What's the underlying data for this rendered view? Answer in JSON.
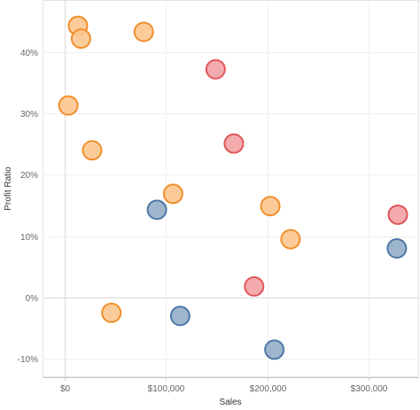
{
  "chart_data": {
    "type": "scatter",
    "title": "",
    "xlabel": "Sales",
    "ylabel": "Profit Ratio",
    "xlim": [
      -22000,
      350000
    ],
    "ylim": [
      -0.13,
      0.485
    ],
    "x_ticks": [
      {
        "value": 0,
        "label": "$0"
      },
      {
        "value": 100000,
        "label": "$100,000"
      },
      {
        "value": 200000,
        "label": "$200,000"
      },
      {
        "value": 300000,
        "label": "$300,000"
      }
    ],
    "y_ticks": [
      {
        "value": -0.1,
        "label": "-10%"
      },
      {
        "value": 0,
        "label": "0%"
      },
      {
        "value": 0.1,
        "label": "10%"
      },
      {
        "value": 0.2,
        "label": "20%"
      },
      {
        "value": 0.3,
        "label": "30%"
      },
      {
        "value": 0.4,
        "label": "40%"
      }
    ],
    "grid": true,
    "legend": "none",
    "series": [
      {
        "color": "#f28e2b",
        "fill": "#fbc78f",
        "points": [
          {
            "x": 13000,
            "y": 0.443
          },
          {
            "x": 16000,
            "y": 0.422
          },
          {
            "x": 78000,
            "y": 0.433
          },
          {
            "x": 3500,
            "y": 0.313
          },
          {
            "x": 27000,
            "y": 0.24
          },
          {
            "x": 107000,
            "y": 0.169
          },
          {
            "x": 203000,
            "y": 0.149
          },
          {
            "x": 223000,
            "y": 0.095
          },
          {
            "x": 46000,
            "y": -0.025
          }
        ]
      },
      {
        "color": "#e15759",
        "fill": "#f2a2a5",
        "points": [
          {
            "x": 149000,
            "y": 0.372
          },
          {
            "x": 167000,
            "y": 0.251
          },
          {
            "x": 329000,
            "y": 0.135
          },
          {
            "x": 187000,
            "y": 0.018
          }
        ]
      },
      {
        "color": "#4e79a7",
        "fill": "#94adc9",
        "points": [
          {
            "x": 91000,
            "y": 0.143
          },
          {
            "x": 328000,
            "y": 0.08
          },
          {
            "x": 114000,
            "y": -0.03
          },
          {
            "x": 207000,
            "y": -0.085
          }
        ]
      }
    ]
  }
}
